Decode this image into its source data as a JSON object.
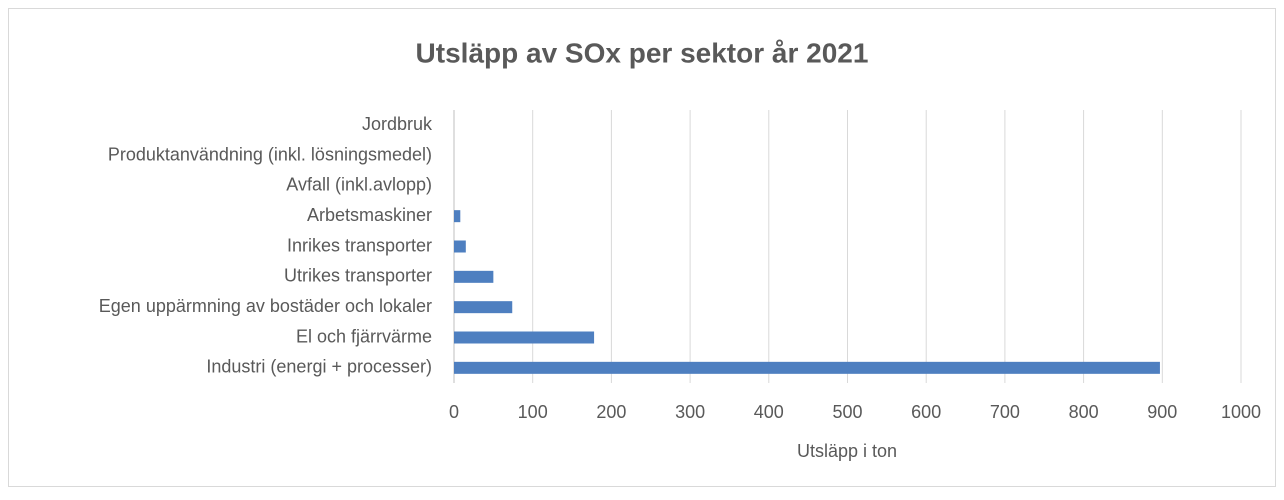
{
  "chart_data": {
    "type": "hbar",
    "title": "Utsläpp av SOx per sektor år 2021",
    "x_label": "Utsläpp i ton",
    "categories": [
      "Industri (energi + processer)",
      "El och fjärrvärme",
      "Egen uppärmning av bostäder och lokaler",
      "Utrikes transporter",
      "Inrikes transporter",
      "Arbetsmaskiner",
      "Avfall (inkl.avlopp)",
      "Produktanvändning (inkl. lösningsmedel)",
      "Jordbruk"
    ],
    "values": [
      897,
      178,
      74,
      50,
      15,
      8,
      0,
      0,
      0
    ],
    "color": "#4e7fc0",
    "xlim": [
      0,
      1000
    ],
    "xticks": [
      0,
      100,
      200,
      300,
      400,
      500,
      600,
      700,
      800,
      900,
      1000
    ],
    "grid": true
  }
}
